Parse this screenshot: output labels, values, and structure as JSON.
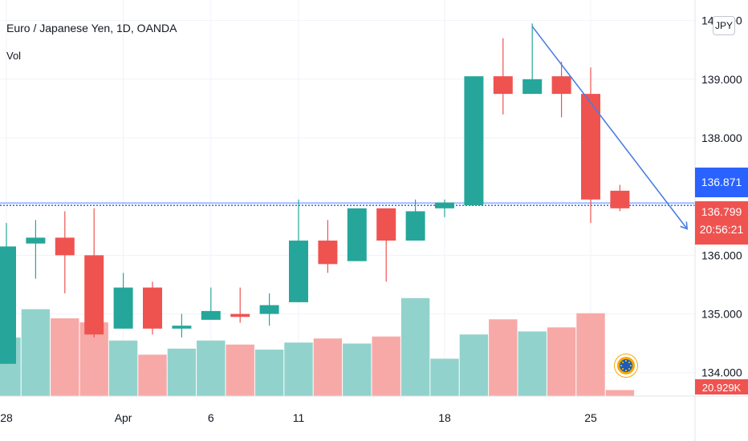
{
  "legend": {
    "title": "Euro / Japanese Yen, 1D, OANDA",
    "volume_label": "Vol"
  },
  "currency_button": "JPY",
  "price_tags": {
    "blue_price": "136.871",
    "last_price": "136.799",
    "countdown": "20:56:21",
    "volume": "20.929K"
  },
  "colors": {
    "up": "#26a69a",
    "down": "#ef5350",
    "up_volume": "#92d2cc",
    "down_volume": "#f7a9a7",
    "trendline": "#4a7fe0",
    "price_line": "#2962ff"
  },
  "chart_data": {
    "type": "candlestick",
    "y_axis": {
      "ticks": [
        "140.000",
        "139.000",
        "138.000",
        "136.000",
        "135.000",
        "134.000"
      ],
      "range": [
        133.6,
        140.35
      ]
    },
    "x_axis": {
      "ticks": [
        {
          "label": "28",
          "index": 0
        },
        {
          "label": "Apr",
          "index": 4
        },
        {
          "label": "6",
          "index": 7
        },
        {
          "label": "11",
          "index": 10
        },
        {
          "label": "18",
          "index": 15
        },
        {
          "label": "25",
          "index": 20
        }
      ]
    },
    "candles": [
      {
        "o": 134.15,
        "h": 136.55,
        "l": 134.15,
        "c": 136.15
      },
      {
        "o": 136.2,
        "h": 136.6,
        "l": 135.6,
        "c": 136.3
      },
      {
        "o": 136.3,
        "h": 136.75,
        "l": 135.35,
        "c": 136.0
      },
      {
        "o": 136.0,
        "h": 136.8,
        "l": 134.6,
        "c": 134.65
      },
      {
        "o": 134.75,
        "h": 135.7,
        "l": 134.75,
        "c": 135.45
      },
      {
        "o": 135.45,
        "h": 135.55,
        "l": 134.65,
        "c": 134.75
      },
      {
        "o": 134.75,
        "h": 135.0,
        "l": 134.6,
        "c": 134.8
      },
      {
        "o": 134.9,
        "h": 135.45,
        "l": 134.9,
        "c": 135.05
      },
      {
        "o": 135.0,
        "h": 135.45,
        "l": 134.85,
        "c": 134.95
      },
      {
        "o": 135.0,
        "h": 135.35,
        "l": 134.8,
        "c": 135.15
      },
      {
        "o": 135.2,
        "h": 136.95,
        "l": 135.2,
        "c": 136.25
      },
      {
        "o": 136.25,
        "h": 136.6,
        "l": 135.7,
        "c": 135.85
      },
      {
        "o": 135.9,
        "h": 136.8,
        "l": 135.9,
        "c": 136.8
      },
      {
        "o": 136.8,
        "h": 136.8,
        "l": 135.55,
        "c": 136.25
      },
      {
        "o": 136.25,
        "h": 136.95,
        "l": 136.25,
        "c": 136.75
      },
      {
        "o": 136.8,
        "h": 136.95,
        "l": 136.65,
        "c": 136.9
      },
      {
        "o": 136.85,
        "h": 139.05,
        "l": 136.85,
        "c": 139.05
      },
      {
        "o": 139.05,
        "h": 139.7,
        "l": 138.4,
        "c": 138.75
      },
      {
        "o": 138.75,
        "h": 139.95,
        "l": 138.75,
        "c": 139.0
      },
      {
        "o": 139.05,
        "h": 139.3,
        "l": 138.35,
        "c": 138.75
      },
      {
        "o": 138.75,
        "h": 139.2,
        "l": 136.55,
        "c": 136.95
      },
      {
        "o": 137.1,
        "h": 137.2,
        "l": 136.75,
        "c": 136.8
      }
    ],
    "volume": {
      "max": 100,
      "values": [
        58,
        86,
        77,
        73,
        55,
        41,
        47,
        55,
        51,
        46,
        53,
        57,
        52,
        59,
        97,
        37,
        61,
        76,
        64,
        68,
        82,
        6
      ]
    },
    "price_line": 136.85,
    "trendline": {
      "from": {
        "index": 18,
        "price": 139.9
      },
      "to": {
        "index": 23.3,
        "price": 136.45
      }
    }
  }
}
